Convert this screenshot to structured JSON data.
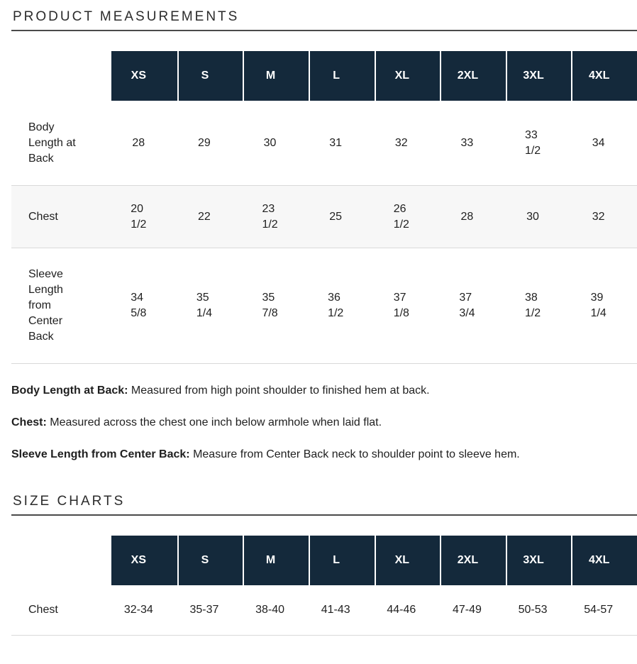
{
  "colors": {
    "header_bg": "#14293b",
    "header_text": "#ffffff",
    "row_alt_bg": "#f7f7f7",
    "divider": "#d9d9d9",
    "heading_underline": "#4a4a4a",
    "text": "#1f1f1f"
  },
  "product_measurements": {
    "heading": "PRODUCT MEASUREMENTS",
    "size_headers": [
      "XS",
      "S",
      "M",
      "L",
      "XL",
      "2XL",
      "3XL",
      "4XL"
    ],
    "rows": [
      {
        "label": "Body Length at Back",
        "values": [
          "28",
          "29",
          "30",
          "31",
          "32",
          "33",
          "33\n1/2",
          "34"
        ]
      },
      {
        "label": "Chest",
        "values": [
          "20\n1/2",
          "22",
          "23\n1/2",
          "25",
          "26\n1/2",
          "28",
          "30",
          "32"
        ]
      },
      {
        "label": "Sleeve Length from Center Back",
        "values": [
          "34\n5/8",
          "35\n1/4",
          "35\n7/8",
          "36\n1/2",
          "37\n1/8",
          "37\n3/4",
          "38\n1/2",
          "39\n1/4"
        ]
      }
    ],
    "definitions": [
      {
        "term": "Body Length at Back:",
        "description": "Measured from high point shoulder to finished hem at back."
      },
      {
        "term": "Chest:",
        "description": "Measured across the chest one inch below armhole when laid flat."
      },
      {
        "term": "Sleeve Length from Center Back:",
        "description": "Measure from Center Back neck to shoulder point to sleeve hem."
      }
    ]
  },
  "size_charts": {
    "heading": "SIZE CHARTS",
    "size_headers": [
      "XS",
      "S",
      "M",
      "L",
      "XL",
      "2XL",
      "3XL",
      "4XL"
    ],
    "rows": [
      {
        "label": "Chest",
        "values": [
          "32-34",
          "35-37",
          "38-40",
          "41-43",
          "44-46",
          "47-49",
          "50-53",
          "54-57"
        ]
      }
    ]
  }
}
